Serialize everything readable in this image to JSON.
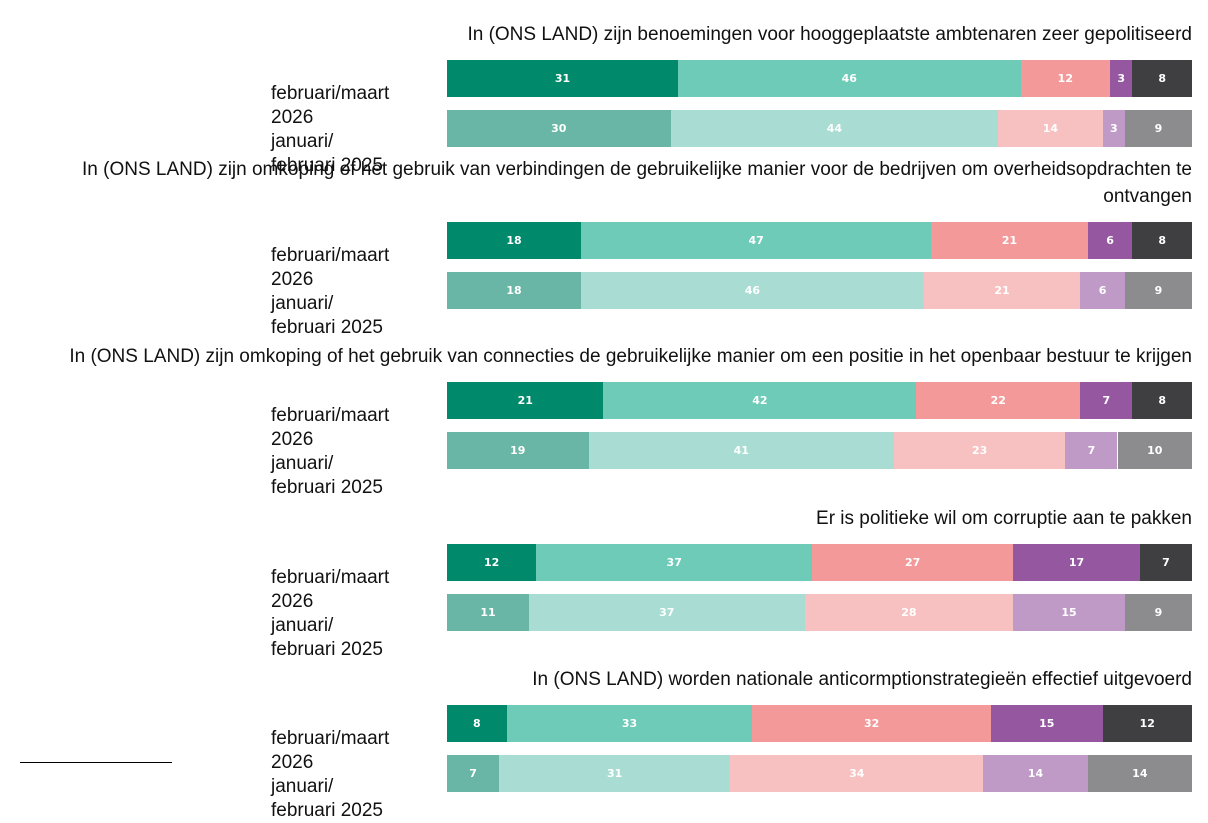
{
  "chart_data": [
    {
      "type": "stacked-bar",
      "title": "In (ONS LAND) zijn benoemingen voor hooggeplaatste ambtenaren zeer gepolitiseerd",
      "categories": [
        "februari/maart 2026",
        "januari/ februari 2025"
      ],
      "xlim": [
        0,
        100
      ],
      "series": [
        {
          "colors": [
            "#00896b",
            "#6ab6a6"
          ],
          "values": [
            31,
            30
          ]
        },
        {
          "colors": [
            "#6ecbb8",
            "#a9ddd3"
          ],
          "values": [
            46,
            44
          ]
        },
        {
          "colors": [
            "#f4999a",
            "#f7c1c1"
          ],
          "values": [
            12,
            14
          ]
        },
        {
          "colors": [
            "#9558a0",
            "#bf9ac7"
          ],
          "values": [
            3,
            3
          ]
        },
        {
          "colors": [
            "#3f3f41",
            "#8c8c8e"
          ],
          "values": [
            8,
            9
          ]
        }
      ]
    },
    {
      "type": "stacked-bar",
      "title": "In (ONS LAND) zijn omkoping of het gebruik van verbindingen de gebruikelijke manier voor de bedrijven om overheidsopdrachten te ontvangen",
      "categories": [
        "februari/maart 2026",
        "januari/ februari 2025"
      ],
      "xlim": [
        0,
        100
      ],
      "series": [
        {
          "colors": [
            "#00896b",
            "#6ab6a6"
          ],
          "values": [
            18,
            18
          ]
        },
        {
          "colors": [
            "#6ecbb8",
            "#a9ddd3"
          ],
          "values": [
            47,
            46
          ]
        },
        {
          "colors": [
            "#f4999a",
            "#f7c1c1"
          ],
          "values": [
            21,
            21
          ]
        },
        {
          "colors": [
            "#9558a0",
            "#bf9ac7"
          ],
          "values": [
            6,
            6
          ]
        },
        {
          "colors": [
            "#3f3f41",
            "#8c8c8e"
          ],
          "values": [
            8,
            9
          ]
        }
      ]
    },
    {
      "type": "stacked-bar",
      "title": "In (ONS LAND) zijn omkoping of het gebruik van connecties de gebruikelijke manier om een positie in het openbaar bestuur te krijgen",
      "categories": [
        "februari/maart 2026",
        "januari/ februari 2025"
      ],
      "xlim": [
        0,
        100
      ],
      "series": [
        {
          "colors": [
            "#00896b",
            "#6ab6a6"
          ],
          "values": [
            21,
            19
          ]
        },
        {
          "colors": [
            "#6ecbb8",
            "#a9ddd3"
          ],
          "values": [
            42,
            41
          ]
        },
        {
          "colors": [
            "#f4999a",
            "#f7c1c1"
          ],
          "values": [
            22,
            23
          ]
        },
        {
          "colors": [
            "#9558a0",
            "#bf9ac7"
          ],
          "values": [
            7,
            7
          ]
        },
        {
          "colors": [
            "#3f3f41",
            "#8c8c8e"
          ],
          "values": [
            8,
            10
          ]
        }
      ]
    },
    {
      "type": "stacked-bar",
      "title": "Er is politieke wil om corruptie aan te pakken",
      "categories": [
        "februari/maart 2026",
        "januari/ februari 2025"
      ],
      "xlim": [
        0,
        100
      ],
      "series": [
        {
          "colors": [
            "#00896b",
            "#6ab6a6"
          ],
          "values": [
            12,
            11
          ]
        },
        {
          "colors": [
            "#6ecbb8",
            "#a9ddd3"
          ],
          "values": [
            37,
            37
          ]
        },
        {
          "colors": [
            "#f4999a",
            "#f7c1c1"
          ],
          "values": [
            27,
            28
          ]
        },
        {
          "colors": [
            "#9558a0",
            "#bf9ac7"
          ],
          "values": [
            17,
            15
          ]
        },
        {
          "colors": [
            "#3f3f41",
            "#8c8c8e"
          ],
          "values": [
            7,
            9
          ]
        }
      ]
    },
    {
      "type": "stacked-bar",
      "title": "In (ONS LAND) worden nationale anticormptionstrategieën effectief uitgevoerd",
      "categories": [
        "februari/maart 2026",
        "januari/ februari 2025"
      ],
      "xlim": [
        0,
        100
      ],
      "series": [
        {
          "colors": [
            "#00896b",
            "#6ab6a6"
          ],
          "values": [
            8,
            7
          ]
        },
        {
          "colors": [
            "#6ecbb8",
            "#a9ddd3"
          ],
          "values": [
            33,
            31
          ]
        },
        {
          "colors": [
            "#f4999a",
            "#f7c1c1"
          ],
          "values": [
            32,
            34
          ]
        },
        {
          "colors": [
            "#9558a0",
            "#bf9ac7"
          ],
          "values": [
            15,
            14
          ]
        },
        {
          "colors": [
            "#3f3f41",
            "#8c8c8e"
          ],
          "values": [
            12,
            14
          ]
        }
      ]
    }
  ]
}
